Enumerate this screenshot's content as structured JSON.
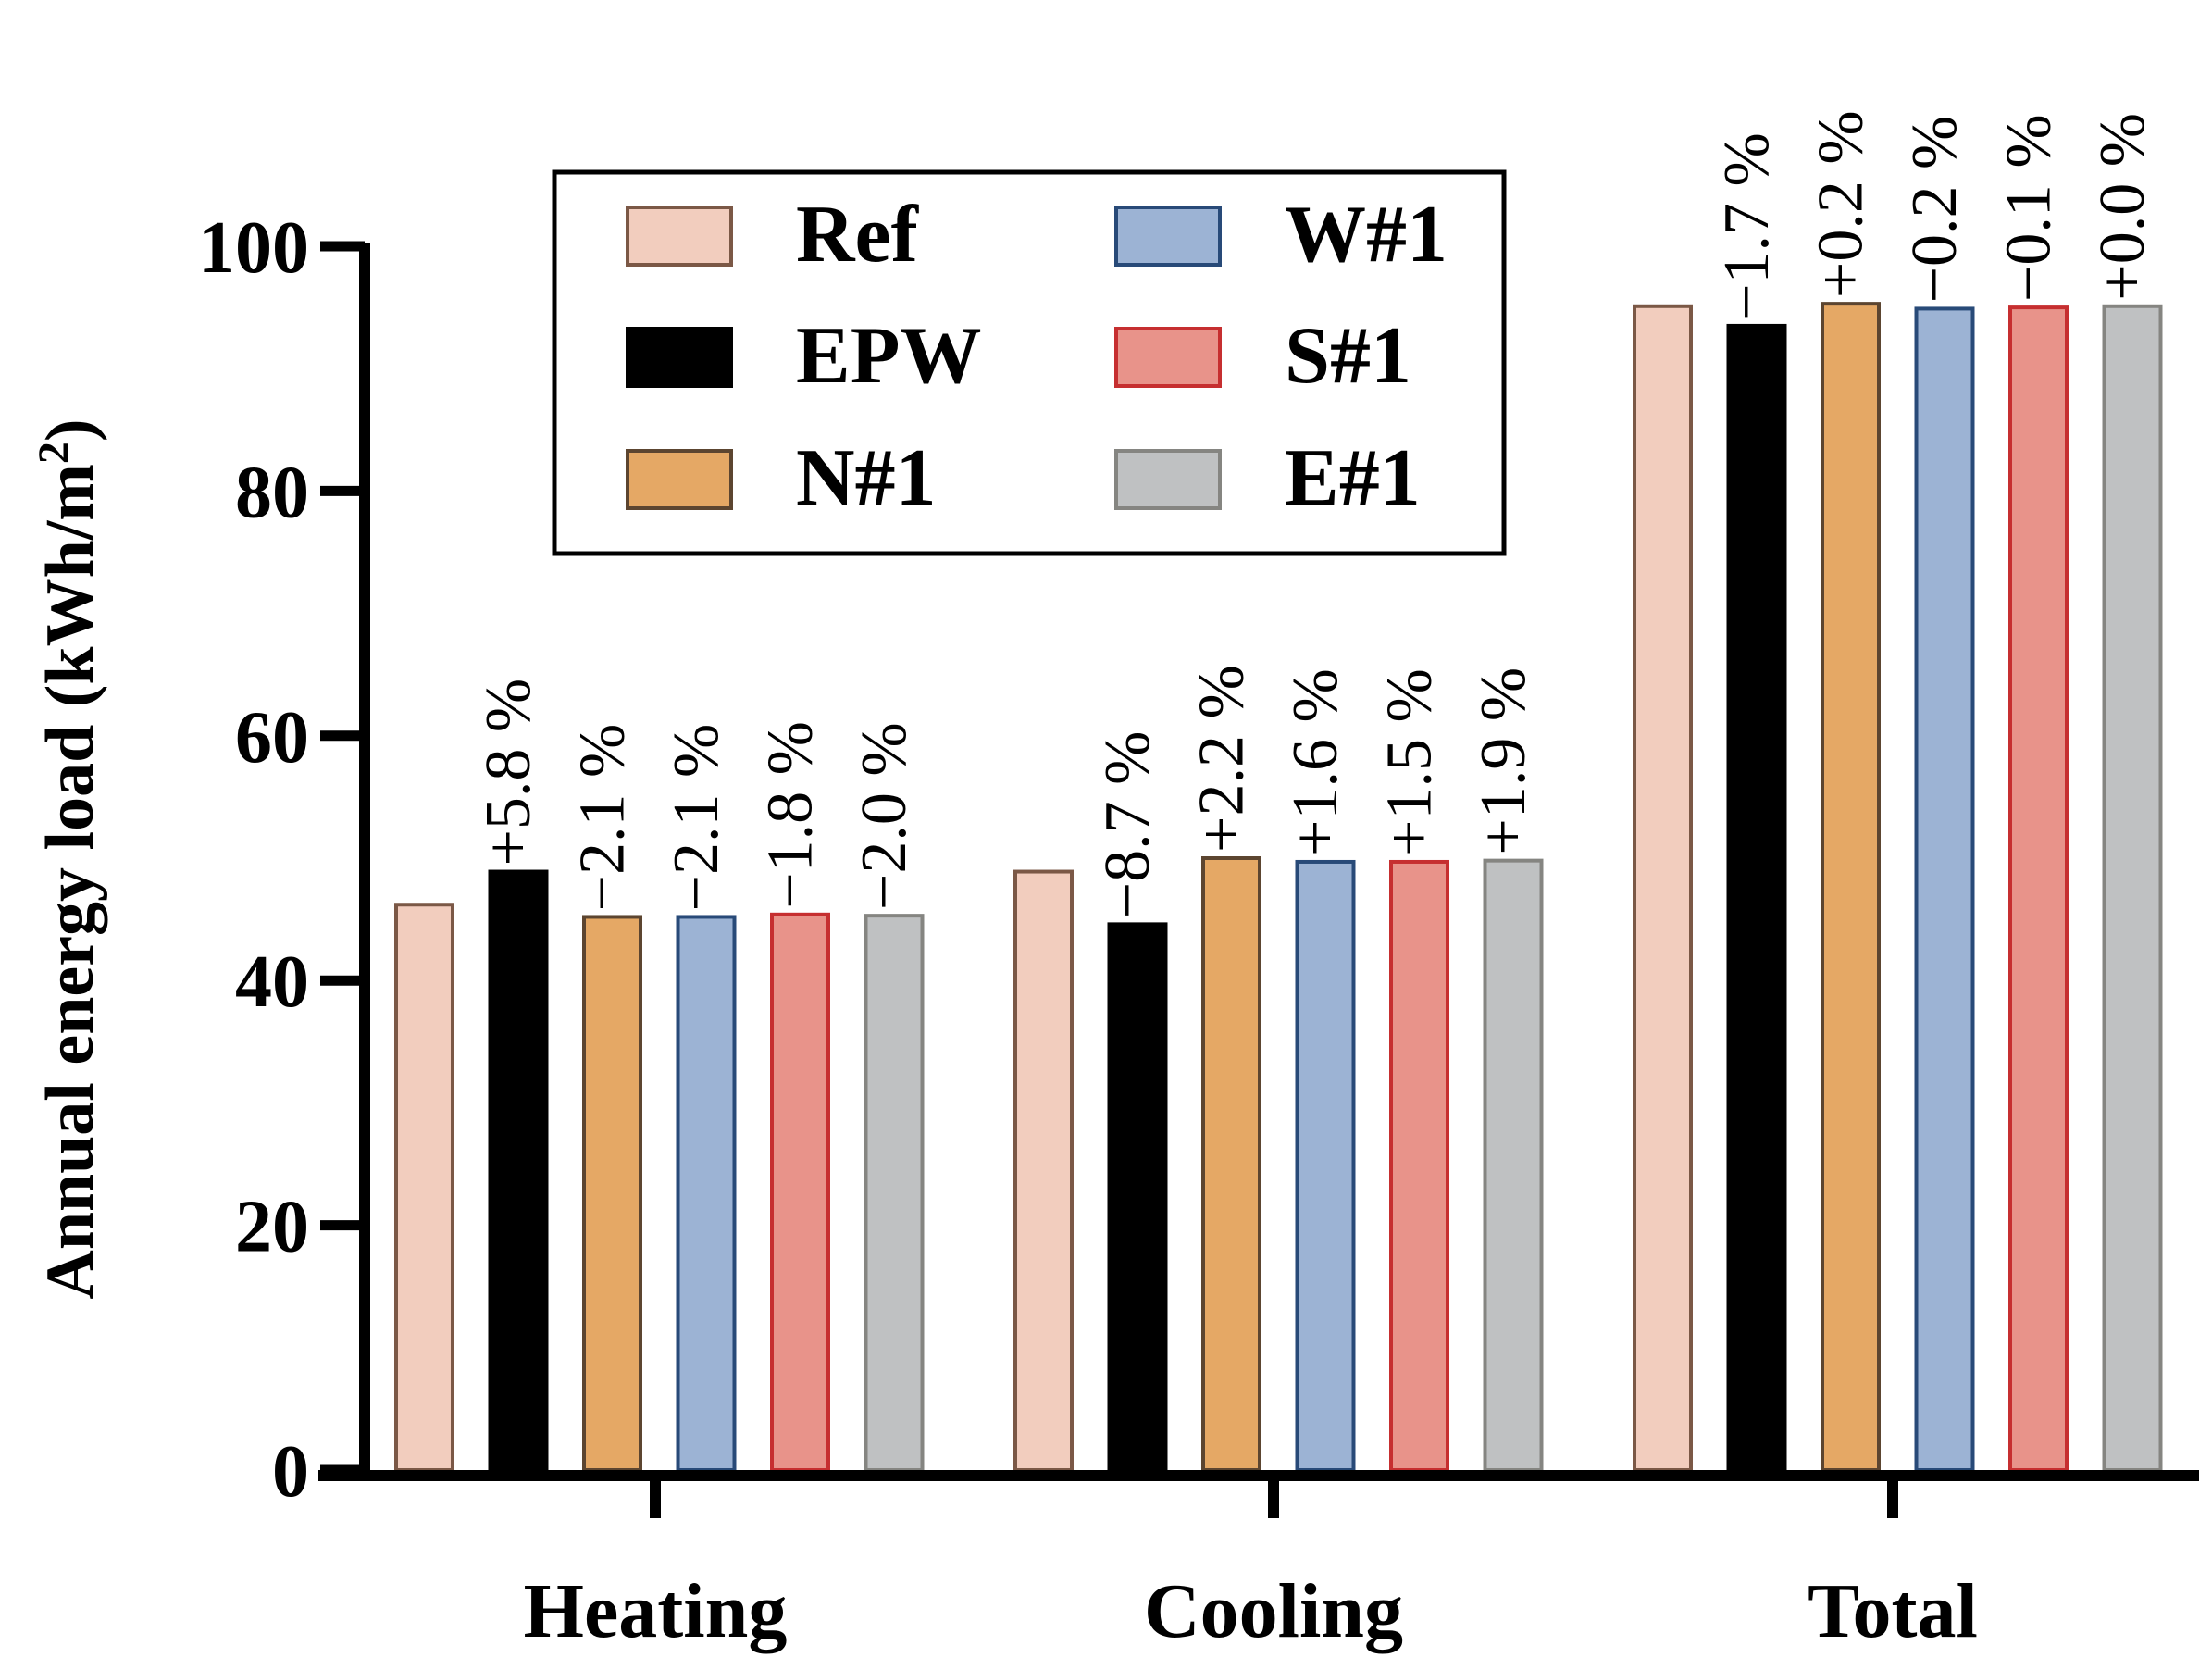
{
  "chart_data": {
    "type": "bar",
    "title": "",
    "xlabel": "",
    "ylabel": "Annual energy load (kWh/m²)",
    "ylabel_parts": {
      "main": "Annual energy load (kWh/m",
      "superscript": "2",
      "close": ")"
    },
    "ylim": [
      0,
      100
    ],
    "yticks": [
      "0",
      "20",
      "40",
      "60",
      "80",
      "100"
    ],
    "categories": [
      "Heating",
      "Cooling",
      "Total"
    ],
    "legend_position": "top-left",
    "series": [
      {
        "name": "Ref",
        "fill": "#F2CDBE",
        "stroke": "#7B5846",
        "values": [
          46.2,
          48.9,
          95.1
        ],
        "annotations": [
          "",
          "",
          ""
        ]
      },
      {
        "name": "EPW",
        "fill": "#000000",
        "stroke": "#000000",
        "values": [
          48.9,
          44.6,
          93.5
        ],
        "annotations": [
          "+5.8 %",
          "−8.7 %",
          "−1.7 %"
        ]
      },
      {
        "name": "N#1",
        "fill": "#E5A865",
        "stroke": "#5C4530",
        "values": [
          45.2,
          50.0,
          95.3
        ],
        "annotations": [
          "−2.1 %",
          "+2.2 %",
          "+0.2 %"
        ]
      },
      {
        "name": "W#1",
        "fill": "#9CB3D4",
        "stroke": "#284A78",
        "values": [
          45.2,
          49.7,
          94.9
        ],
        "annotations": [
          "−2.1 %",
          "+1.6 %",
          "−0.2 %"
        ]
      },
      {
        "name": "S#1",
        "fill": "#E8938A",
        "stroke": "#C62F30",
        "values": [
          45.4,
          49.7,
          95.0
        ],
        "annotations": [
          "−1.8 %",
          "+1.5 %",
          "−0.1 %"
        ]
      },
      {
        "name": "E#1",
        "fill": "#BFC1C2",
        "stroke": "#858581",
        "values": [
          45.3,
          49.8,
          95.1
        ],
        "annotations": [
          "−2.0 %",
          "+1.9 %",
          "+0.0 %"
        ]
      }
    ]
  }
}
